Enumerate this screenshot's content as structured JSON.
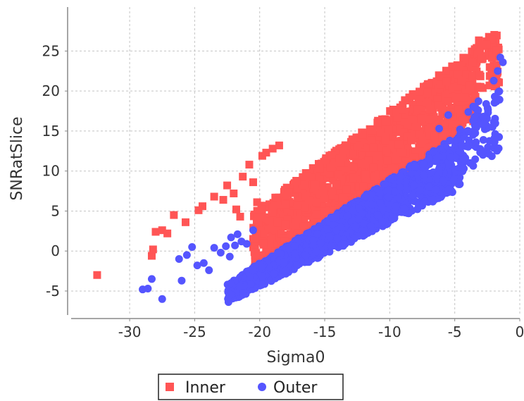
{
  "chart_data": {
    "type": "scatter",
    "title": "",
    "xlabel": "Sigma0",
    "ylabel": "SNRatSlice",
    "xlim": [
      -34.5,
      0
    ],
    "ylim": [
      -8,
      30.5
    ],
    "xticks": [
      -30,
      -25,
      -20,
      -15,
      -10,
      -5,
      0
    ],
    "yticks": [
      -5,
      0,
      5,
      10,
      15,
      20,
      25
    ],
    "grid": true,
    "legend_position": "bottom",
    "series": [
      {
        "name": "Inner",
        "color": "#ff5555",
        "marker": "square",
        "bands": [
          {
            "x0": -20.5,
            "x1": -3.2,
            "low_intercept": 20.2,
            "low_slope": 1.14,
            "high_intercept": 29.5,
            "high_slope": 1.2,
            "count": 1400
          },
          {
            "x0": -3.2,
            "x1": -1.5,
            "low_intercept": 22.5,
            "low_slope": 1.0,
            "high_intercept": 28.0,
            "high_slope": 0.3,
            "count": 60
          }
        ],
        "scatter_points": [
          {
            "x": -32.5,
            "y": -3.0
          },
          {
            "x": -28.3,
            "y": -0.6
          },
          {
            "x": -28.2,
            "y": 0.2
          },
          {
            "x": -28.0,
            "y": 2.4
          },
          {
            "x": -27.5,
            "y": 2.6
          },
          {
            "x": -27.1,
            "y": 2.2
          },
          {
            "x": -26.6,
            "y": 4.5
          },
          {
            "x": -25.7,
            "y": 3.6
          },
          {
            "x": -24.7,
            "y": 5.1
          },
          {
            "x": -24.4,
            "y": 5.6
          },
          {
            "x": -23.5,
            "y": 6.8
          },
          {
            "x": -22.8,
            "y": 6.4
          },
          {
            "x": -22.5,
            "y": 8.2
          },
          {
            "x": -22.0,
            "y": 7.2
          },
          {
            "x": -21.8,
            "y": 5.2
          },
          {
            "x": -21.5,
            "y": 4.3
          },
          {
            "x": -21.3,
            "y": 9.3
          },
          {
            "x": -20.8,
            "y": 10.8
          },
          {
            "x": -20.5,
            "y": 8.6
          },
          {
            "x": -20.2,
            "y": 6.1
          },
          {
            "x": -19.8,
            "y": 11.9
          },
          {
            "x": -19.5,
            "y": 12.3
          },
          {
            "x": -19.0,
            "y": 12.8
          },
          {
            "x": -18.5,
            "y": 13.2
          }
        ]
      },
      {
        "name": "Outer",
        "color": "#5555ff",
        "marker": "circle",
        "bands": [
          {
            "x0": -22.5,
            "x1": -4.5,
            "low_intercept": 11.5,
            "low_slope": 0.8,
            "high_intercept": 19.5,
            "high_slope": 1.05,
            "count": 1400
          },
          {
            "x0": -4.5,
            "x1": -1.5,
            "low_intercept": 14.0,
            "low_slope": 1.0,
            "high_intercept": 22.0,
            "high_slope": 1.0,
            "count": 80
          }
        ],
        "scatter_points": [
          {
            "x": -29.0,
            "y": -4.8
          },
          {
            "x": -28.6,
            "y": -4.7
          },
          {
            "x": -28.3,
            "y": -3.5
          },
          {
            "x": -27.5,
            "y": -6.0
          },
          {
            "x": -26.2,
            "y": -1.0
          },
          {
            "x": -26.0,
            "y": -3.7
          },
          {
            "x": -25.6,
            "y": -0.5
          },
          {
            "x": -25.2,
            "y": 0.5
          },
          {
            "x": -24.8,
            "y": -1.8
          },
          {
            "x": -24.3,
            "y": -1.5
          },
          {
            "x": -23.9,
            "y": -2.4
          },
          {
            "x": -23.5,
            "y": 0.4
          },
          {
            "x": -23.0,
            "y": -0.2
          },
          {
            "x": -22.6,
            "y": 0.6
          },
          {
            "x": -22.3,
            "y": -0.7
          },
          {
            "x": -22.2,
            "y": 1.7
          },
          {
            "x": -21.9,
            "y": 0.7
          },
          {
            "x": -21.7,
            "y": 2.1
          },
          {
            "x": -21.4,
            "y": 1.2
          },
          {
            "x": -21.0,
            "y": 0.9
          },
          {
            "x": -20.5,
            "y": 2.6
          },
          {
            "x": -2.0,
            "y": 21.3
          },
          {
            "x": -1.7,
            "y": 22.5
          },
          {
            "x": -1.5,
            "y": 24.2
          },
          {
            "x": -1.3,
            "y": 23.6
          },
          {
            "x": -2.8,
            "y": 16.8
          },
          {
            "x": -3.2,
            "y": 17.6
          },
          {
            "x": -4.6,
            "y": 15.2
          },
          {
            "x": -5.5,
            "y": 17.0
          },
          {
            "x": -6.2,
            "y": 15.3
          }
        ]
      }
    ]
  }
}
